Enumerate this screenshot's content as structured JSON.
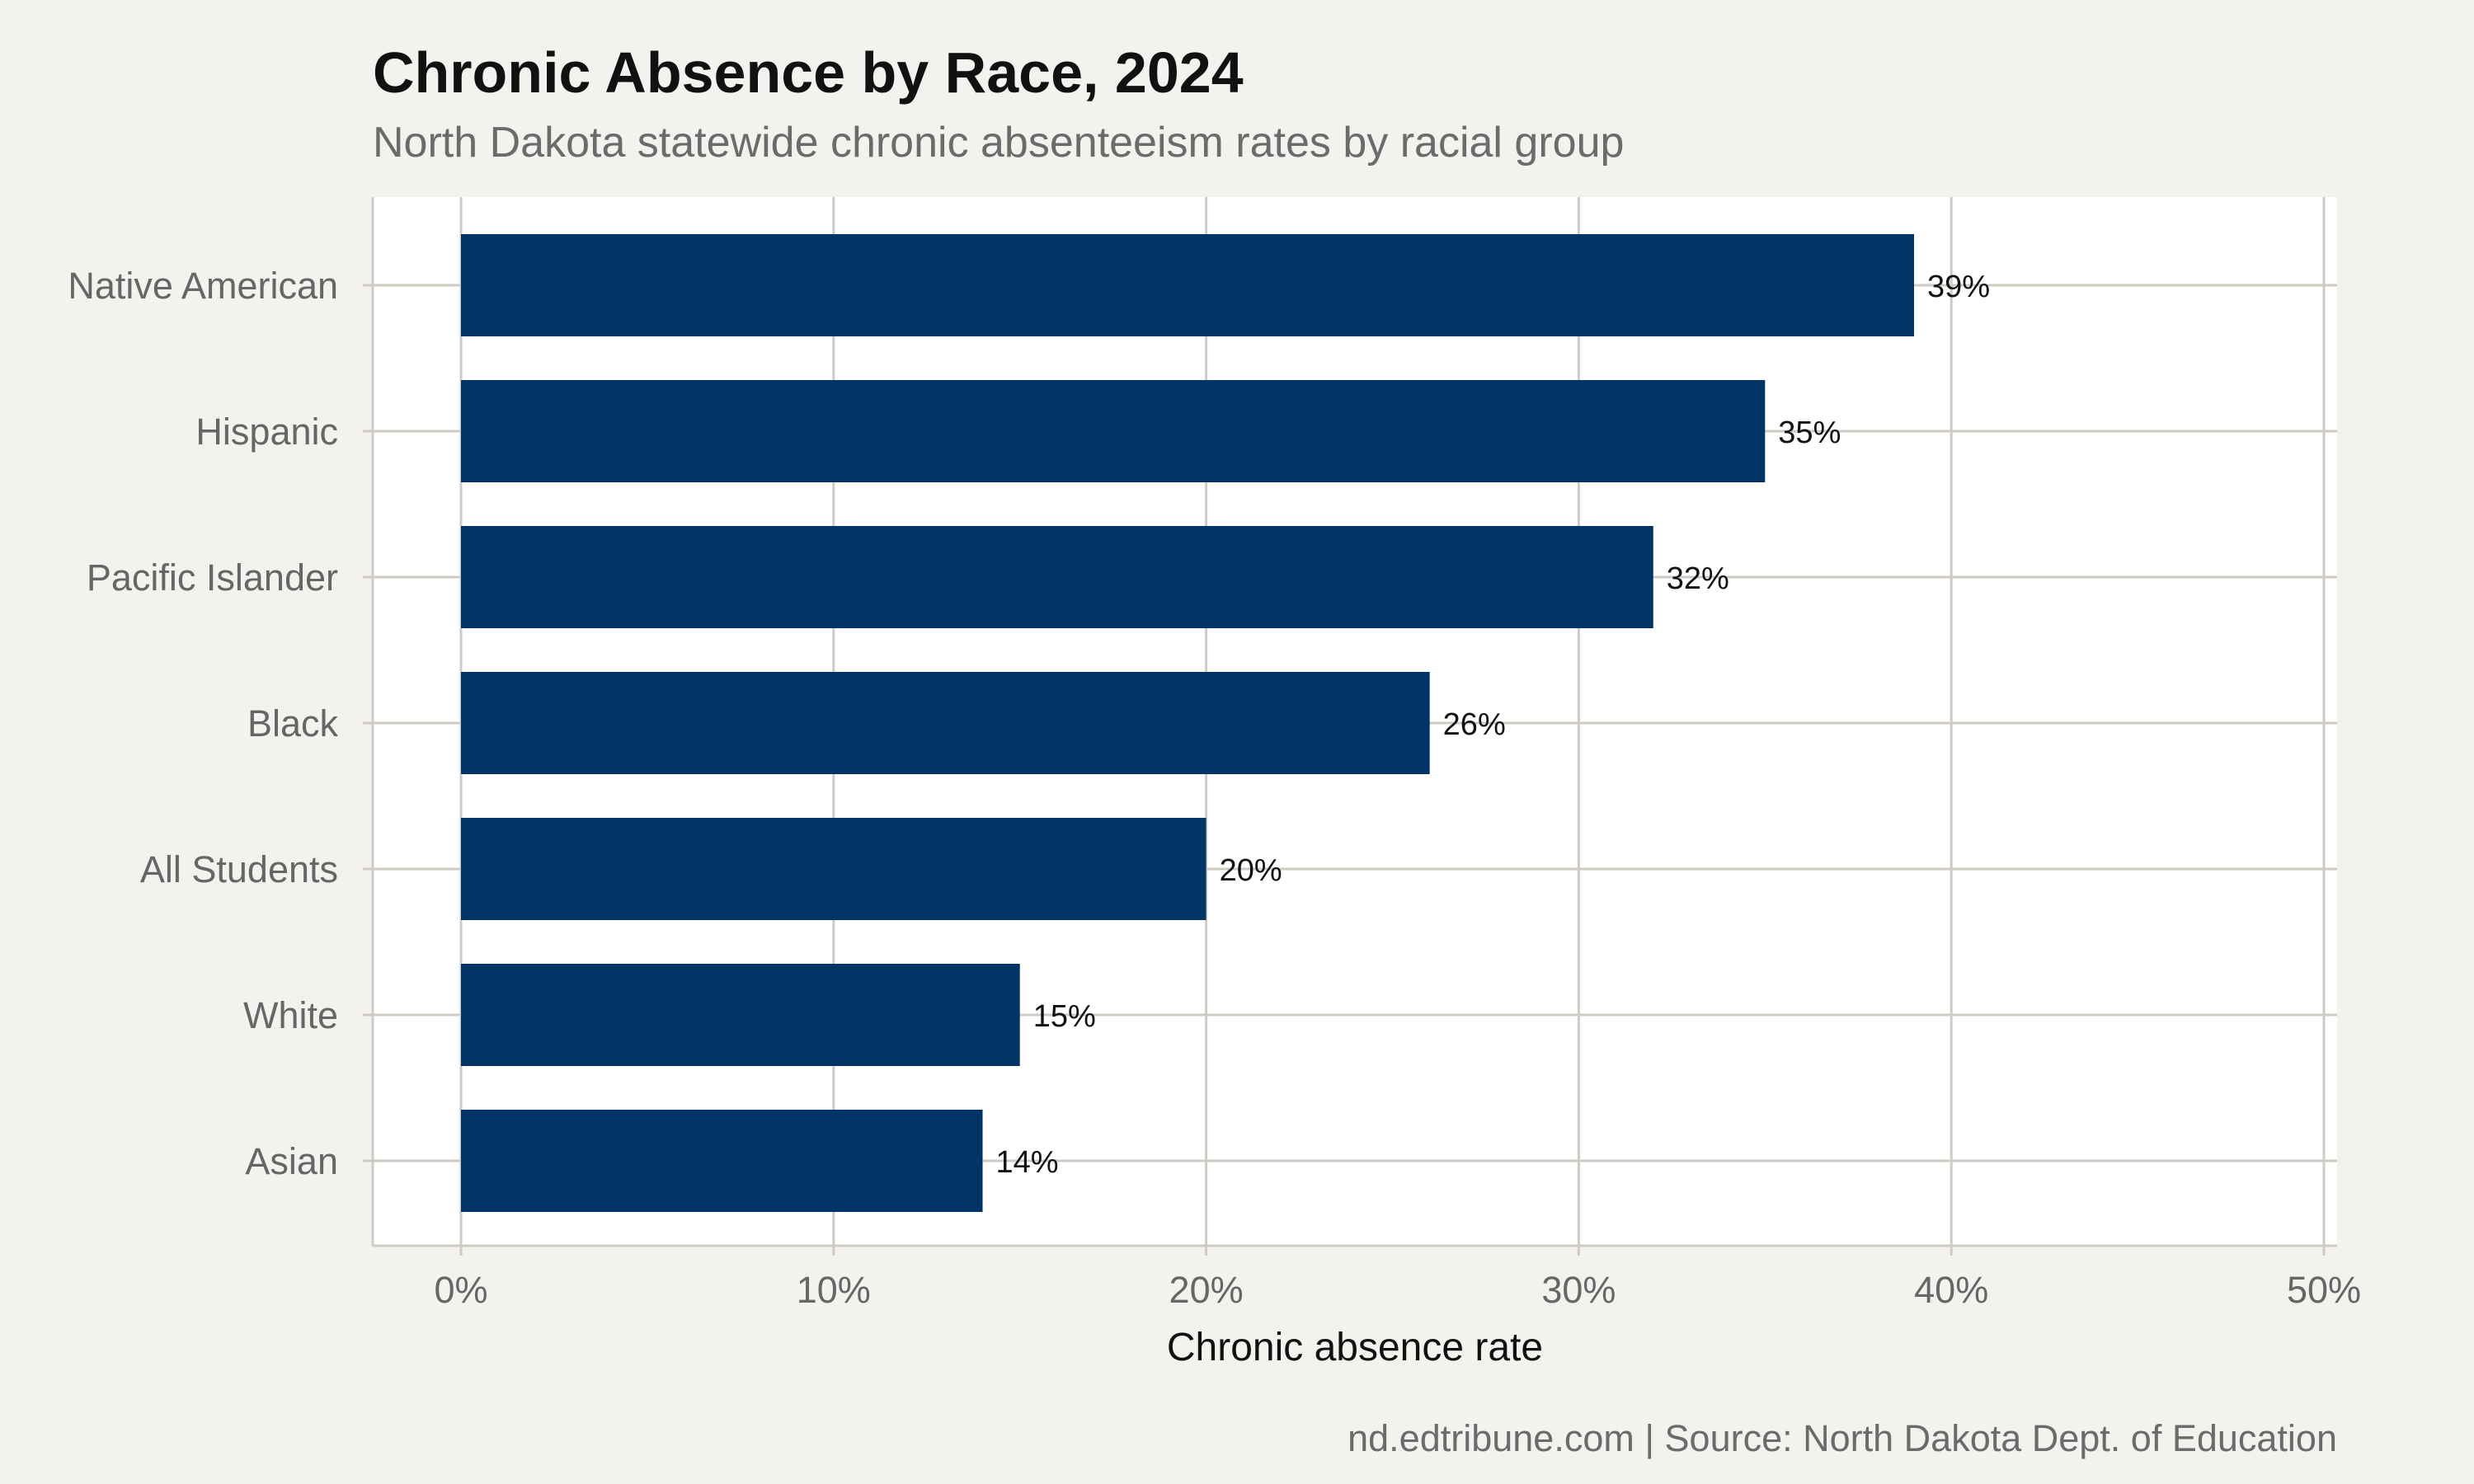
{
  "chart_data": {
    "type": "bar",
    "orientation": "horizontal",
    "title": "Chronic Absence by Race, 2024",
    "subtitle": "North Dakota statewide chronic absenteeism rates by racial group",
    "xlabel": "Chronic absence rate",
    "ylabel": "",
    "categories": [
      "Native American",
      "Hispanic",
      "Pacific Islander",
      "Black",
      "All Students",
      "White",
      "Asian"
    ],
    "values": [
      39,
      35,
      32,
      26,
      20,
      15,
      14
    ],
    "value_labels": [
      "39%",
      "35%",
      "32%",
      "26%",
      "20%",
      "15%",
      "14%"
    ],
    "xlim": [
      0,
      50
    ],
    "x_ticks": [
      0,
      10,
      20,
      30,
      40,
      50
    ],
    "x_tick_labels": [
      "0%",
      "10%",
      "20%",
      "30%",
      "40%",
      "50%"
    ],
    "grid": true,
    "legend": "none",
    "caption": "nd.edtribune.com | Source: North Dakota Dept. of Education",
    "colors": {
      "bar": "#003366",
      "page_background": "#f4f2ee",
      "panel_background": "#ffffff",
      "grid": "#cfcbc4"
    }
  }
}
